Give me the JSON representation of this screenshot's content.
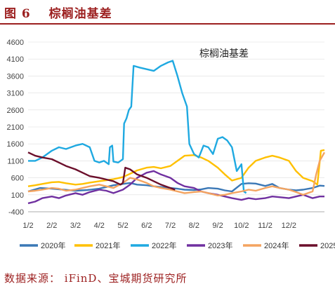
{
  "figure": {
    "label": "图 6",
    "title": "棕榈油基差",
    "source": "数据来源： iFinD、宝城期货研究所"
  },
  "chart_data": {
    "type": "line",
    "title": "棕榈油基差",
    "xlabel": "",
    "ylabel": "",
    "ylim": [
      -400,
      4600
    ],
    "yticks": [
      -400,
      100,
      600,
      1100,
      1600,
      2100,
      2600,
      3100,
      3600,
      4100,
      4600
    ],
    "x_ticks": [
      "1/2",
      "2/2",
      "3/2",
      "4/2",
      "5/2",
      "6/2",
      "7/2",
      "8/2",
      "9/2",
      "10/2",
      "11/2",
      "12/2"
    ],
    "xlim": [
      0,
      12.5
    ],
    "x_unit": "month offset from Jan 2",
    "legend_position": "bottom",
    "series": [
      {
        "name": "2020年",
        "color": "#3b78b6",
        "points": [
          [
            0,
            200
          ],
          [
            0.5,
            300
          ],
          [
            1,
            280
          ],
          [
            1.5,
            250
          ],
          [
            2,
            220
          ],
          [
            2.5,
            240
          ],
          [
            3,
            280
          ],
          [
            3.3,
            330
          ],
          [
            3.6,
            380
          ],
          [
            4,
            420
          ],
          [
            4.3,
            450
          ],
          [
            4.6,
            400
          ],
          [
            5,
            380
          ],
          [
            5.3,
            350
          ],
          [
            5.6,
            330
          ],
          [
            6,
            300
          ],
          [
            6.3,
            280
          ],
          [
            6.6,
            250
          ],
          [
            7,
            240
          ],
          [
            7.3,
            260
          ],
          [
            7.6,
            300
          ],
          [
            8,
            280
          ],
          [
            8.3,
            230
          ],
          [
            8.6,
            200
          ],
          [
            9,
            420
          ],
          [
            9.3,
            440
          ],
          [
            9.6,
            430
          ],
          [
            10,
            360
          ],
          [
            10.3,
            420
          ],
          [
            10.6,
            300
          ],
          [
            11,
            250
          ],
          [
            11.3,
            230
          ],
          [
            11.6,
            250
          ],
          [
            12,
            300
          ],
          [
            12.3,
            370
          ],
          [
            12.5,
            360
          ]
        ]
      },
      {
        "name": "2021年",
        "color": "#ffc000",
        "points": [
          [
            0,
            350
          ],
          [
            0.3,
            380
          ],
          [
            0.6,
            420
          ],
          [
            1,
            470
          ],
          [
            1.3,
            480
          ],
          [
            1.6,
            440
          ],
          [
            2,
            400
          ],
          [
            2.3,
            420
          ],
          [
            2.6,
            460
          ],
          [
            3,
            500
          ],
          [
            3.3,
            530
          ],
          [
            3.6,
            560
          ],
          [
            4,
            620
          ],
          [
            4.3,
            720
          ],
          [
            4.6,
            820
          ],
          [
            5,
            900
          ],
          [
            5.3,
            920
          ],
          [
            5.6,
            880
          ],
          [
            6,
            950
          ],
          [
            6.3,
            1100
          ],
          [
            6.6,
            1250
          ],
          [
            7,
            1270
          ],
          [
            7.3,
            1200
          ],
          [
            7.6,
            1100
          ],
          [
            8,
            900
          ],
          [
            8.3,
            700
          ],
          [
            8.6,
            520
          ],
          [
            9,
            600
          ],
          [
            9.3,
            900
          ],
          [
            9.6,
            1100
          ],
          [
            10,
            1200
          ],
          [
            10.3,
            1250
          ],
          [
            10.6,
            1200
          ],
          [
            11,
            1100
          ],
          [
            11.3,
            800
          ],
          [
            11.6,
            600
          ],
          [
            12,
            500
          ],
          [
            12.2,
            400
          ],
          [
            12.35,
            1400
          ],
          [
            12.5,
            1420
          ]
        ]
      },
      {
        "name": "2022年",
        "color": "#1fa9e1",
        "points": [
          [
            0,
            1100
          ],
          [
            0.3,
            1100
          ],
          [
            0.6,
            1200
          ],
          [
            1,
            1400
          ],
          [
            1.3,
            1500
          ],
          [
            1.6,
            1450
          ],
          [
            2,
            1550
          ],
          [
            2.3,
            1600
          ],
          [
            2.6,
            1500
          ],
          [
            2.8,
            1100
          ],
          [
            3,
            1050
          ],
          [
            3.2,
            1100
          ],
          [
            3.4,
            1000
          ],
          [
            3.45,
            1500
          ],
          [
            3.55,
            1550
          ],
          [
            3.6,
            1080
          ],
          [
            3.8,
            1050
          ],
          [
            4,
            1150
          ],
          [
            4.05,
            2200
          ],
          [
            4.15,
            2350
          ],
          [
            4.25,
            2600
          ],
          [
            4.35,
            2700
          ],
          [
            4.45,
            3900
          ],
          [
            4.7,
            3850
          ],
          [
            5,
            3800
          ],
          [
            5.3,
            3750
          ],
          [
            5.6,
            3900
          ],
          [
            5.9,
            4000
          ],
          [
            6.1,
            4050
          ],
          [
            6.3,
            3600
          ],
          [
            6.5,
            3100
          ],
          [
            6.7,
            2700
          ],
          [
            6.8,
            1600
          ],
          [
            7,
            1300
          ],
          [
            7.2,
            1200
          ],
          [
            7.4,
            1550
          ],
          [
            7.6,
            1500
          ],
          [
            7.8,
            1300
          ],
          [
            8,
            1750
          ],
          [
            8.2,
            1800
          ],
          [
            8.4,
            1700
          ],
          [
            8.6,
            1500
          ],
          [
            8.8,
            800
          ],
          [
            9,
            1000
          ],
          [
            9.1,
            200
          ],
          [
            9.2,
            150
          ]
        ]
      },
      {
        "name": "2023年",
        "color": "#7030a0",
        "points": [
          [
            0,
            -150
          ],
          [
            0.3,
            -100
          ],
          [
            0.6,
            0
          ],
          [
            1,
            50
          ],
          [
            1.3,
            0
          ],
          [
            1.6,
            80
          ],
          [
            2,
            150
          ],
          [
            2.3,
            100
          ],
          [
            2.6,
            180
          ],
          [
            3,
            250
          ],
          [
            3.3,
            220
          ],
          [
            3.6,
            150
          ],
          [
            4,
            250
          ],
          [
            4.3,
            400
          ],
          [
            4.6,
            600
          ],
          [
            5,
            750
          ],
          [
            5.3,
            800
          ],
          [
            5.6,
            700
          ],
          [
            6,
            600
          ],
          [
            6.3,
            450
          ],
          [
            6.6,
            350
          ],
          [
            7,
            300
          ],
          [
            7.3,
            200
          ],
          [
            7.6,
            150
          ],
          [
            8,
            100
          ],
          [
            8.3,
            50
          ],
          [
            8.6,
            0
          ],
          [
            9,
            -50
          ],
          [
            9.3,
            0
          ],
          [
            9.6,
            -30
          ],
          [
            10,
            0
          ],
          [
            10.3,
            50
          ],
          [
            10.6,
            30
          ],
          [
            11,
            0
          ],
          [
            11.3,
            50
          ],
          [
            11.6,
            100
          ],
          [
            12,
            0
          ],
          [
            12.3,
            50
          ],
          [
            12.5,
            50
          ]
        ]
      },
      {
        "name": "2024年",
        "color": "#f4a460",
        "points": [
          [
            0,
            200
          ],
          [
            0.3,
            220
          ],
          [
            0.6,
            250
          ],
          [
            1,
            300
          ],
          [
            1.3,
            280
          ],
          [
            1.6,
            220
          ],
          [
            2,
            250
          ],
          [
            2.3,
            300
          ],
          [
            2.6,
            350
          ],
          [
            3,
            400
          ],
          [
            3.3,
            350
          ],
          [
            3.6,
            300
          ],
          [
            4,
            450
          ],
          [
            4.3,
            600
          ],
          [
            4.6,
            550
          ],
          [
            5,
            450
          ],
          [
            5.3,
            350
          ],
          [
            5.6,
            300
          ],
          [
            6,
            250
          ],
          [
            6.3,
            200
          ],
          [
            6.6,
            150
          ],
          [
            7,
            180
          ],
          [
            7.3,
            200
          ],
          [
            7.6,
            150
          ],
          [
            8,
            80
          ],
          [
            8.3,
            100
          ],
          [
            8.6,
            150
          ],
          [
            9,
            200
          ],
          [
            9.3,
            250
          ],
          [
            9.6,
            220
          ],
          [
            10,
            300
          ],
          [
            10.3,
            350
          ],
          [
            10.6,
            300
          ],
          [
            11,
            250
          ],
          [
            11.3,
            180
          ],
          [
            11.6,
            100
          ],
          [
            12,
            200
          ],
          [
            12.15,
            700
          ],
          [
            12.3,
            1100
          ],
          [
            12.5,
            1350
          ]
        ]
      },
      {
        "name": "2025",
        "color": "#6b0f2b",
        "points": [
          [
            0,
            1350
          ],
          [
            0.3,
            1250
          ],
          [
            0.6,
            1200
          ],
          [
            1,
            1150
          ],
          [
            1.3,
            1050
          ],
          [
            1.6,
            950
          ],
          [
            2,
            850
          ],
          [
            2.3,
            750
          ],
          [
            2.6,
            650
          ],
          [
            3,
            600
          ],
          [
            3.3,
            550
          ],
          [
            3.6,
            500
          ],
          [
            3.9,
            400
          ],
          [
            4,
            450
          ],
          [
            4.1,
            900
          ],
          [
            4.3,
            850
          ],
          [
            4.6,
            700
          ],
          [
            5,
            600
          ],
          [
            5.3,
            500
          ],
          [
            5.6,
            400
          ],
          [
            6,
            300
          ],
          [
            6.2,
            250
          ]
        ]
      }
    ]
  }
}
